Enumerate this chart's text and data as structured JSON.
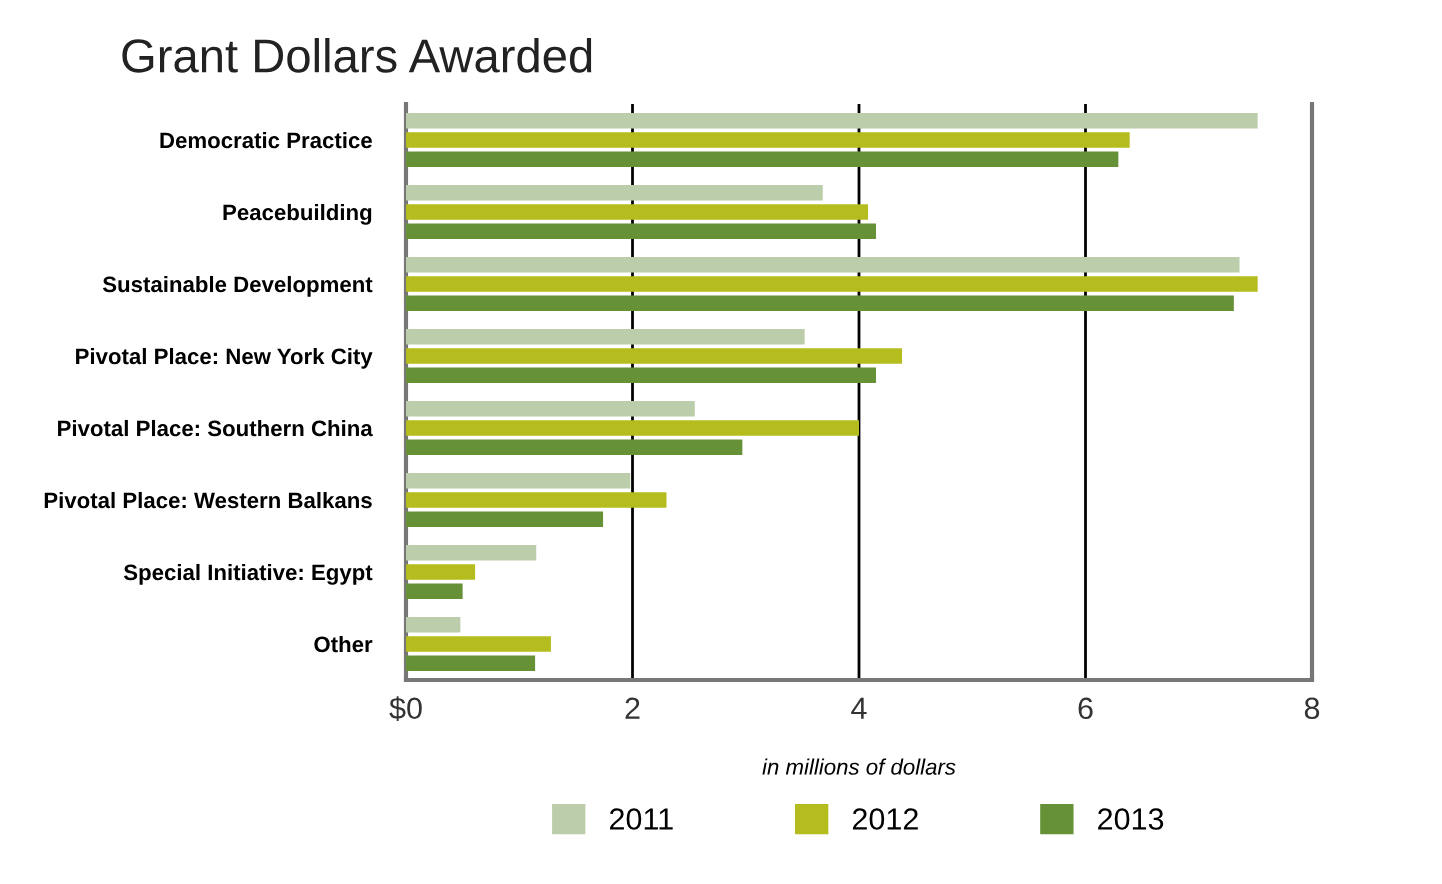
{
  "chart_data": {
    "type": "bar",
    "orientation": "horizontal",
    "title": "Grant Dollars Awarded",
    "xlabel": "in millions of dollars",
    "categories": [
      "Democratic Practice",
      "Peacebuilding",
      "Sustainable Development",
      "Pivotal Place: New York City",
      "Pivotal Place: Southern China",
      "Pivotal Place: Western Balkans",
      "Special Initiative: Egypt",
      "Other"
    ],
    "series": [
      {
        "name": "2011",
        "color": "#bccdab",
        "values": [
          7.52,
          3.68,
          7.36,
          3.52,
          2.55,
          1.98,
          1.15,
          0.48
        ]
      },
      {
        "name": "2012",
        "color": "#b5bc1e",
        "values": [
          6.39,
          4.08,
          7.52,
          4.38,
          4.0,
          2.3,
          0.61,
          1.28
        ]
      },
      {
        "name": "2013",
        "color": "#679137",
        "values": [
          6.29,
          4.15,
          7.31,
          4.15,
          2.97,
          1.74,
          0.5,
          1.14
        ]
      }
    ],
    "xlim": [
      0,
      8
    ],
    "xticks": [
      {
        "value": 0,
        "label": "$0"
      },
      2,
      4,
      6,
      8
    ],
    "grid": "x",
    "legend": "bottom"
  }
}
